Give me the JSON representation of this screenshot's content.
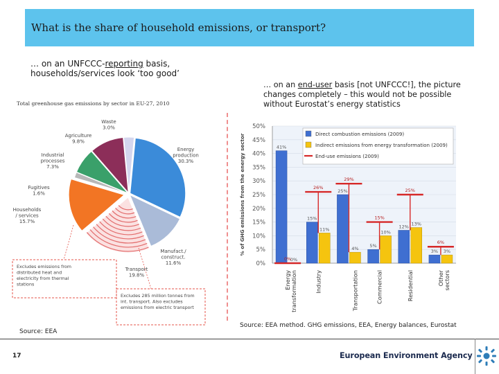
{
  "header": {
    "title": "What is the share of household emissions, or transport?"
  },
  "notes": {
    "left_prefix": "… on an UNFCCC-",
    "left_underlined": "reporting",
    "left_suffix": " basis, households/services look ‘too good’",
    "right_prefix": "… on an ",
    "right_underlined": "end-user",
    "right_suffix": " basis [not UNFCCC!], the picture changes completely – this would not be possible without Eurostat’s energy statistics"
  },
  "sources": {
    "left": "Source: EEA",
    "right": "Source: EEA method. GHG emissions, EEA, Energy balances, Eurostat"
  },
  "footer": {
    "page": "17",
    "org": "European Environment Agency"
  },
  "chart_data": [
    {
      "type": "pie",
      "title": "Total greenhouse gas emissions by sector in EU-27, 2010",
      "slices": [
        {
          "label": "Waste",
          "value": 3.0,
          "text": "3.0%",
          "color": "#d4d6ee"
        },
        {
          "label": "Energy production",
          "value": 30.3,
          "text": "30.3%",
          "color": "#3b8bd9"
        },
        {
          "label": "Manufact./ construct.",
          "value": 11.6,
          "text": "11.6%",
          "color": "#aabbd8"
        },
        {
          "label": "Transport",
          "value": 19.8,
          "text": "19.8%",
          "color": "#f7c2c2"
        },
        {
          "label": "Households / services",
          "value": 15.7,
          "text": "15.7%",
          "color": "#f27524"
        },
        {
          "label": "Fugitives",
          "value": 1.6,
          "text": "1.6%",
          "color": "#b8b8b8"
        },
        {
          "label": "Industrial processes",
          "value": 7.3,
          "text": "7.3%",
          "color": "#3aa06a"
        },
        {
          "label": "Agriculture",
          "value": 9.8,
          "text": "9.8%",
          "color": "#8c2e59"
        }
      ],
      "annotations": [
        "Excludes emissions from distributed heat and electricity from thermal stations",
        "Excludes 285 million tonnes from int. transport. Also excludes emissions from electric transport"
      ]
    },
    {
      "type": "bar",
      "ylabel": "% of GHG emissions from the energy sector",
      "ylim": [
        0,
        50
      ],
      "yticks": [
        "0%",
        "5%",
        "10%",
        "15%",
        "20%",
        "25%",
        "30%",
        "35%",
        "40%",
        "45%",
        "50%"
      ],
      "categories": [
        "Energy transformation",
        "Industry",
        "Transportation",
        "Commercial",
        "Residential",
        "Other sectors"
      ],
      "series": [
        {
          "name": "Direct combustion emissions (2009)",
          "values": [
            41,
            15,
            25,
            5,
            12,
            3
          ],
          "labels": [
            "41%",
            "15%",
            "25%",
            "5%",
            "12%",
            "3%"
          ],
          "color": "#3f6fd1"
        },
        {
          "name": "Indirect emissions from energy transformation (2009)",
          "values": [
            0,
            11,
            4,
            10,
            13,
            3
          ],
          "labels": [
            "0%",
            "11%",
            "4%",
            "10%",
            "13%",
            "3%"
          ],
          "color": "#f5c40f"
        },
        {
          "name": "End-use emissions (2009)",
          "values": [
            0,
            26,
            29,
            15,
            25,
            6
          ],
          "labels": [
            "0%",
            "26%",
            "29%",
            "15%",
            "25%",
            "6%"
          ],
          "color": "#d62828"
        }
      ],
      "legend": "top-right"
    }
  ]
}
